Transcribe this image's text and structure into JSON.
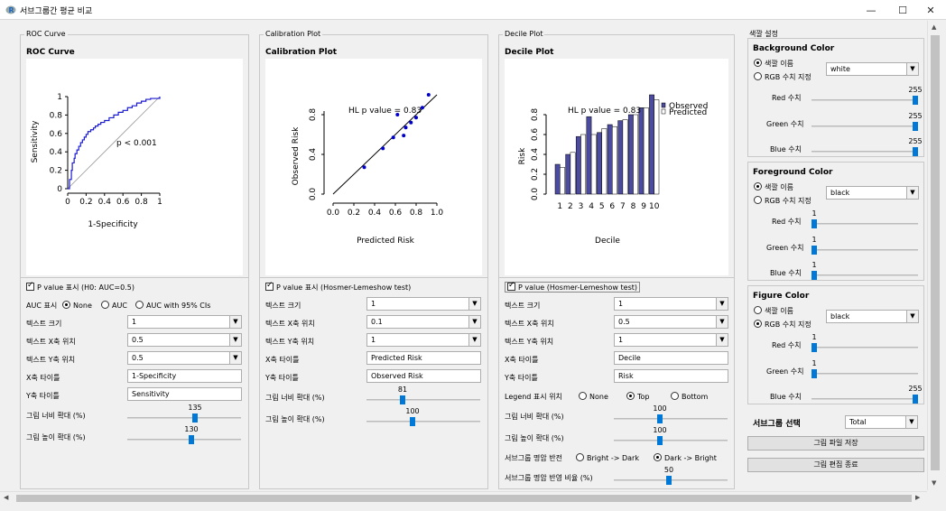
{
  "window": {
    "title": "서브그룹간 평균 비교",
    "minimize": "—",
    "maximize": "☐",
    "close": "✕"
  },
  "roc": {
    "frame_label": "ROC Curve",
    "plot_title": "ROC Curve",
    "chart_data": {
      "type": "line",
      "xlabel": "1-Specificity",
      "ylabel": "Sensitivity",
      "xticks": [
        "0",
        "0.2",
        "0.4",
        "0.6",
        "0.8",
        "1"
      ],
      "yticks": [
        "0",
        "0.2",
        "0.4",
        "0.6",
        "0.8",
        "1"
      ],
      "annotation": "p  < 0.001",
      "x": [
        0,
        0.02,
        0.04,
        0.05,
        0.07,
        0.08,
        0.1,
        0.12,
        0.14,
        0.16,
        0.18,
        0.2,
        0.22,
        0.25,
        0.28,
        0.3,
        0.33,
        0.36,
        0.4,
        0.45,
        0.5,
        0.55,
        0.6,
        0.65,
        0.7,
        0.75,
        0.8,
        0.85,
        0.9,
        1
      ],
      "y": [
        0,
        0.1,
        0.2,
        0.28,
        0.33,
        0.38,
        0.42,
        0.46,
        0.5,
        0.53,
        0.56,
        0.59,
        0.62,
        0.64,
        0.66,
        0.68,
        0.7,
        0.72,
        0.74,
        0.77,
        0.8,
        0.83,
        0.85,
        0.88,
        0.9,
        0.93,
        0.95,
        0.97,
        0.98,
        1
      ]
    },
    "pvalue_check": "P value 표시 (H0: AUC=0.5)",
    "auc_label": "AUC 표시",
    "auc_options": [
      "None",
      "AUC",
      "AUC with  95% CIs"
    ],
    "text_size_label": "텍스트 크기",
    "text_size": "1",
    "text_x_label": "텍스트 X축 위치",
    "text_x": "0.5",
    "text_y_label": "텍스트 Y축 위치",
    "text_y": "0.5",
    "xtitle_label": "X축 타이틀",
    "xtitle": "1-Specificity",
    "ytitle_label": "Y축 타이틀",
    "ytitle": "Sensitivity",
    "width_label": "그림 너비 확대 (%)",
    "width_val": "135",
    "width_frac": 0.6,
    "height_label": "그림 높이 확대 (%)",
    "height_val": "130",
    "height_frac": 0.57
  },
  "calib": {
    "frame_label": "Calibration Plot",
    "plot_title": "Calibration Plot",
    "chart_data": {
      "type": "scatter",
      "xlabel": "Predicted Risk",
      "ylabel": "Observed Risk",
      "xticks": [
        "0.0",
        "0.2",
        "0.4",
        "0.6",
        "0.8",
        "1.0"
      ],
      "yticks": [
        "0.0",
        "0.4",
        "0.8"
      ],
      "annotation": "HL p value = 0.83",
      "x": [
        0.3,
        0.48,
        0.58,
        0.62,
        0.68,
        0.7,
        0.75,
        0.8,
        0.86,
        0.92
      ],
      "y": [
        0.27,
        0.46,
        0.57,
        0.8,
        0.59,
        0.67,
        0.72,
        0.77,
        0.87,
        1.0
      ]
    },
    "pvalue_check": "P value 표시 (Hosmer-Lemeshow test)",
    "text_size_label": "텍스트 크기",
    "text_size": "1",
    "text_x_label": "텍스트 X축 위치",
    "text_x": "0.1",
    "text_y_label": "텍스트 Y축 위치",
    "text_y": "1",
    "xtitle_label": "X축 타이틀",
    "xtitle": "Predicted Risk",
    "ytitle_label": "Y축 타이틀",
    "ytitle": "Observed Risk",
    "width_label": "그림 너비 확대 (%)",
    "width_val": "81",
    "width_frac": 0.31,
    "height_label": "그림 높이 확대 (%)",
    "height_val": "100",
    "height_frac": 0.4
  },
  "decile": {
    "frame_label": "Decile Plot",
    "plot_title": "Decile Plot",
    "chart_data": {
      "type": "bar",
      "xlabel": "Decile",
      "ylabel": "Risk",
      "categories": [
        "1",
        "2",
        "3",
        "4",
        "5",
        "6",
        "7",
        "8",
        "9",
        "10"
      ],
      "yticks": [
        "0.0",
        "0.2",
        "0.4",
        "0.6",
        "0.8"
      ],
      "annotation": "HL p value = 0.83",
      "series": [
        {
          "name": "Observed",
          "values": [
            0.3,
            0.4,
            0.58,
            0.78,
            0.62,
            0.7,
            0.74,
            0.8,
            0.87,
            1.0
          ]
        },
        {
          "name": "Predicted",
          "values": [
            0.27,
            0.42,
            0.6,
            0.6,
            0.66,
            0.68,
            0.75,
            0.8,
            0.87,
            0.95
          ]
        }
      ]
    },
    "pvalue_check": "P value (Hosmer-Lemeshow test)",
    "text_size_label": "텍스트 크기",
    "text_size": "1",
    "text_x_label": "텍스트 X축 위치",
    "text_x": "0.5",
    "text_y_label": "텍스트 Y축 위치",
    "text_y": "1",
    "xtitle_label": "X축 타이틀",
    "xtitle": "Decile",
    "ytitle_label": "Y축 타이틀",
    "ytitle": "Risk",
    "legend_label": "Legend 표시 위치",
    "legend_options": [
      "None",
      "Top",
      "Bottom"
    ],
    "width_label": "그림 너비 확대 (%)",
    "width_val": "100",
    "width_frac": 0.4,
    "height_label": "그림 높이 확대 (%)",
    "height_val": "100",
    "height_frac": 0.4,
    "invert_label": "서브그룹 명암 반전",
    "invert_options": [
      "Bright -> Dark",
      "Dark -> Bright"
    ],
    "ratio_label": "서브그룹 명암 반영 비율 (%)",
    "ratio_val": "50",
    "ratio_frac": 0.48
  },
  "color": {
    "frame_label": "색깔 설정",
    "bg": {
      "title": "Background Color",
      "opt1": "색깔 이름",
      "opt2": "RGB 수치 지정",
      "name": "white",
      "red_label": "Red 수치",
      "red": "255",
      "red_frac": 1.0,
      "green_label": "Green 수치",
      "green": "255",
      "green_frac": 1.0,
      "blue_label": "Blue 수치",
      "blue": "255",
      "blue_frac": 1.0
    },
    "fg": {
      "title": "Foreground Color",
      "opt1": "색깔 이름",
      "opt2": "RGB 수치 지정",
      "name": "black",
      "red_label": "Red 수치",
      "red": "1",
      "red_frac": 0.0,
      "green_label": "Green 수치",
      "green": "1",
      "green_frac": 0.0,
      "blue_label": "Blue 수치",
      "blue": "1",
      "blue_frac": 0.0
    },
    "fig": {
      "title": "Figure Color",
      "opt1": "색깔 이름",
      "opt2": "RGB 수치 지정",
      "name": "black",
      "red_label": "Red 수치",
      "red": "1",
      "red_frac": 0.0,
      "green_label": "Green 수치",
      "green": "1",
      "green_frac": 0.0,
      "blue_label": "Blue 수치",
      "blue": "255",
      "blue_frac": 1.0
    },
    "subgroup_label": "서브그룹 선택",
    "subgroup": "Total",
    "save_button": "그림 파일 저장",
    "exit_button": "그림 편집 종료"
  },
  "colors": {
    "accent": "#0078d7",
    "bar_dark": "#4b4ba0",
    "point": "#0000cc"
  }
}
